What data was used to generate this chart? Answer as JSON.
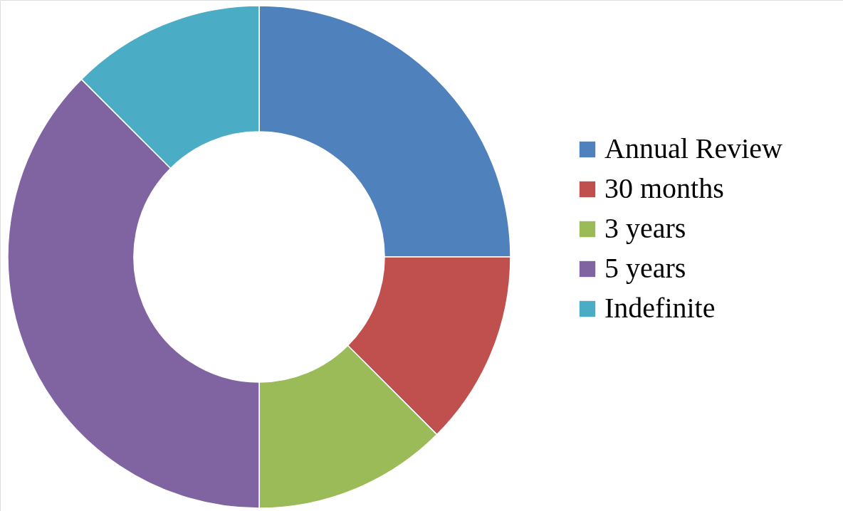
{
  "chart_data": {
    "type": "donut",
    "categories": [
      "Annual Review",
      "30 months",
      "3 years",
      "5 years",
      "Indefinite"
    ],
    "values": [
      25,
      12.5,
      12.5,
      37.5,
      12.5
    ],
    "colors": [
      "#4f81bd",
      "#c0504d",
      "#9bbb59",
      "#8064a2",
      "#4bacc6"
    ],
    "legend": "right"
  }
}
